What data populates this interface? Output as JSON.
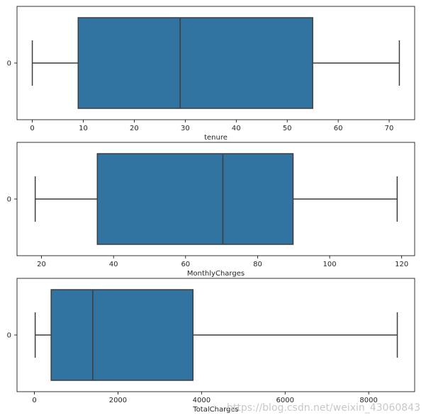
{
  "chart_data": [
    {
      "type": "boxplot",
      "xlabel": "tenure",
      "y_categories": [
        "0"
      ],
      "xlim": [
        -3,
        75
      ],
      "xticks": [
        0,
        10,
        20,
        30,
        40,
        50,
        60,
        70
      ],
      "box": {
        "min": 0,
        "q1": 9,
        "median": 29,
        "q3": 55,
        "max": 72
      },
      "color": "#3274a1"
    },
    {
      "type": "boxplot",
      "xlabel": "MonthlyCharges",
      "y_categories": [
        "0"
      ],
      "xlim": [
        13.2,
        123.6
      ],
      "xticks": [
        20,
        40,
        60,
        80,
        100,
        120
      ],
      "box": {
        "min": 18.25,
        "q1": 35.5,
        "median": 70.35,
        "q3": 89.85,
        "max": 118.75
      },
      "color": "#3274a1"
    },
    {
      "type": "boxplot",
      "xlabel": "TotalCharges",
      "y_categories": [
        "0"
      ],
      "xlim": [
        -416,
        9100
      ],
      "xticks": [
        0,
        2000,
        4000,
        6000,
        8000
      ],
      "box": {
        "min": 18.8,
        "q1": 401,
        "median": 1397,
        "q3": 3795,
        "max": 8684.8
      },
      "color": "#3274a1"
    }
  ],
  "watermark": "https://blog.csdn.net/weixin_43060843"
}
